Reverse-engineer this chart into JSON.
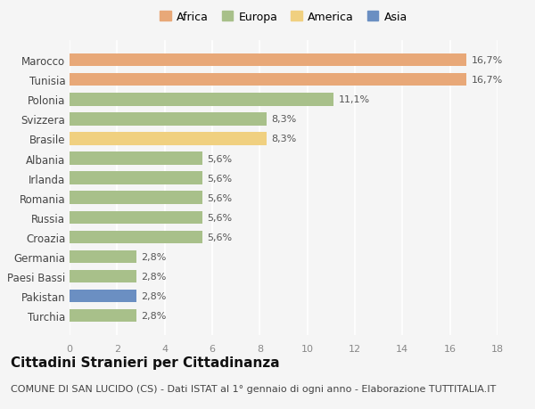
{
  "categories": [
    "Turchia",
    "Pakistan",
    "Paesi Bassi",
    "Germania",
    "Croazia",
    "Russia",
    "Romania",
    "Irlanda",
    "Albania",
    "Brasile",
    "Svizzera",
    "Polonia",
    "Tunisia",
    "Marocco"
  ],
  "values": [
    2.8,
    2.8,
    2.8,
    2.8,
    5.6,
    5.6,
    5.6,
    5.6,
    5.6,
    8.3,
    8.3,
    11.1,
    16.7,
    16.7
  ],
  "colors": [
    "#a8c08a",
    "#6b8fc2",
    "#a8c08a",
    "#a8c08a",
    "#a8c08a",
    "#a8c08a",
    "#a8c08a",
    "#a8c08a",
    "#a8c08a",
    "#f0d080",
    "#a8c08a",
    "#a8c08a",
    "#e8a878",
    "#e8a878"
  ],
  "labels": [
    "2,8%",
    "2,8%",
    "2,8%",
    "2,8%",
    "5,6%",
    "5,6%",
    "5,6%",
    "5,6%",
    "5,6%",
    "8,3%",
    "8,3%",
    "11,1%",
    "16,7%",
    "16,7%"
  ],
  "title": "Cittadini Stranieri per Cittadinanza",
  "subtitle": "COMUNE DI SAN LUCIDO (CS) - Dati ISTAT al 1° gennaio di ogni anno - Elaborazione TUTTITALIA.IT",
  "xlim": [
    0,
    18
  ],
  "xticks": [
    0,
    2,
    4,
    6,
    8,
    10,
    12,
    14,
    16,
    18
  ],
  "legend_labels": [
    "Africa",
    "Europa",
    "America",
    "Asia"
  ],
  "legend_colors": [
    "#e8a878",
    "#a8c08a",
    "#f0d080",
    "#6b8fc2"
  ],
  "background_color": "#f5f5f5",
  "bar_height": 0.65,
  "label_fontsize": 8,
  "title_fontsize": 11,
  "subtitle_fontsize": 8
}
